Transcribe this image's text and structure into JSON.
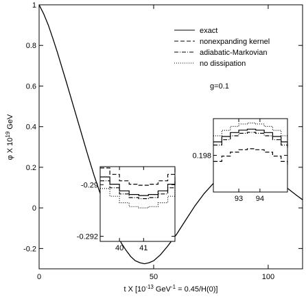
{
  "chart_data": {
    "type": "line",
    "title": "",
    "xlabel": "t X [10^-13 GeV^-1 = 0.45/H(0)]",
    "ylabel": "φ  X 10^19 GeV",
    "xlim": [
      0,
      115
    ],
    "ylim": [
      -0.3,
      1.0
    ],
    "x_ticks": [
      0,
      50,
      100
    ],
    "y_ticks": [
      -0.2,
      0,
      0.2,
      0.4,
      0.6,
      0.8,
      1
    ],
    "y_tick_labels": [
      "-0.2",
      "0",
      "0.2",
      "0.4",
      "0.6",
      "0.8",
      "1"
    ],
    "annotation": "g=0.1",
    "grid": false,
    "legend_position": "top-right",
    "series": [
      {
        "name": "exact",
        "style": "solid",
        "x": [
          0,
          2,
          4,
          6,
          8,
          10,
          12,
          15,
          18,
          21,
          24,
          27,
          30,
          33,
          36,
          38,
          40,
          42,
          44,
          46,
          48,
          50,
          53,
          56,
          60,
          64,
          68,
          72,
          76,
          80,
          84,
          88,
          91,
          94,
          97,
          100,
          104,
          108,
          112,
          115
        ],
        "y": [
          1.0,
          0.955,
          0.9,
          0.835,
          0.765,
          0.69,
          0.615,
          0.5,
          0.385,
          0.27,
          0.16,
          0.06,
          -0.03,
          -0.11,
          -0.175,
          -0.21,
          -0.24,
          -0.26,
          -0.27,
          -0.275,
          -0.27,
          -0.26,
          -0.23,
          -0.19,
          -0.13,
          -0.06,
          0.01,
          0.07,
          0.12,
          0.16,
          0.185,
          0.198,
          0.2,
          0.197,
          0.185,
          0.165,
          0.135,
          0.1,
          0.065,
          0.04
        ]
      },
      {
        "name": "nonexpanding kernel",
        "style": "dashed"
      },
      {
        "name": "adiabatic-Markovian",
        "style": "dashdot"
      },
      {
        "name": "no dissipation",
        "style": "dotted"
      }
    ],
    "insets": [
      {
        "xlim": [
          39.2,
          42.3
        ],
        "ylim": [
          -0.2922,
          -0.2893
        ],
        "x_ticks": [
          40,
          41
        ],
        "y_ticks": [
          -0.29,
          -0.292
        ],
        "y_tick_labels": [
          "-0.29",
          "-0.292"
        ],
        "x": [
          39.2,
          39.6,
          40.0,
          40.4,
          40.8,
          41.2,
          41.6,
          42.0,
          42.3
        ],
        "series": [
          {
            "name": "nonexpanding kernel",
            "y": [
              -0.28935,
              -0.2896,
              -0.28985,
              -0.28998,
              -0.29002,
              -0.28998,
              -0.28985,
              -0.2896,
              -0.28935
            ]
          },
          {
            "name": "exact",
            "y": [
              -0.2897,
              -0.28998,
              -0.29024,
              -0.29038,
              -0.29042,
              -0.29038,
              -0.29024,
              -0.28998,
              -0.2897
            ]
          },
          {
            "name": "adiabatic-Markovian",
            "y": [
              -0.28985,
              -0.29012,
              -0.29036,
              -0.2905,
              -0.29054,
              -0.2905,
              -0.29036,
              -0.29012,
              -0.28985
            ]
          },
          {
            "name": "no dissipation",
            "y": [
              -0.29015,
              -0.29045,
              -0.2907,
              -0.29085,
              -0.2909,
              -0.29085,
              -0.2907,
              -0.29045,
              -0.29015
            ]
          }
        ]
      },
      {
        "xlim": [
          91.8,
          95.3
        ],
        "ylim": [
          0.1965,
          0.1995
        ],
        "x_ticks": [
          93,
          94
        ],
        "y_ticks": [
          0.198
        ],
        "y_tick_labels": [
          "0.198"
        ],
        "x": [
          91.8,
          92.2,
          92.6,
          93.0,
          93.4,
          93.8,
          94.2,
          94.6,
          95.0,
          95.3
        ],
        "series": [
          {
            "name": "no dissipation",
            "y": [
              0.1988,
              0.19902,
              0.19918,
              0.19928,
              0.19932,
              0.19928,
              0.19918,
              0.19902,
              0.1988,
              0.19862
            ]
          },
          {
            "name": "exact",
            "y": [
              0.19855,
              0.19877,
              0.19893,
              0.19903,
              0.19907,
              0.19903,
              0.19893,
              0.19877,
              0.19855,
              0.19838
            ]
          },
          {
            "name": "adiabatic-Markovian",
            "y": [
              0.19842,
              0.19864,
              0.1988,
              0.1989,
              0.19894,
              0.1989,
              0.1988,
              0.19864,
              0.19842,
              0.19825
            ]
          },
          {
            "name": "nonexpanding kernel",
            "y": [
              0.19775,
              0.19797,
              0.19813,
              0.19823,
              0.19827,
              0.19823,
              0.19813,
              0.19797,
              0.19775,
              0.19758
            ]
          }
        ]
      }
    ]
  }
}
